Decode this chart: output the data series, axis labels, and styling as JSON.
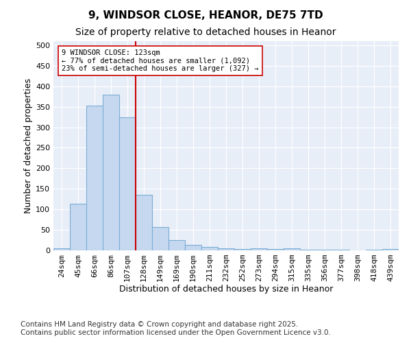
{
  "title": "9, WINDSOR CLOSE, HEANOR, DE75 7TD",
  "subtitle": "Size of property relative to detached houses in Heanor",
  "xlabel": "Distribution of detached houses by size in Heanor",
  "ylabel": "Number of detached properties",
  "categories": [
    "24sqm",
    "45sqm",
    "66sqm",
    "86sqm",
    "107sqm",
    "128sqm",
    "149sqm",
    "169sqm",
    "190sqm",
    "211sqm",
    "232sqm",
    "252sqm",
    "273sqm",
    "294sqm",
    "315sqm",
    "335sqm",
    "356sqm",
    "377sqm",
    "398sqm",
    "418sqm",
    "439sqm"
  ],
  "values": [
    5,
    113,
    352,
    380,
    325,
    135,
    57,
    25,
    13,
    8,
    5,
    4,
    5,
    4,
    5,
    2,
    1,
    1,
    0,
    1,
    3
  ],
  "bar_color": "#c5d8f0",
  "bar_edgecolor": "#7aadd4",
  "vline_x_index": 5,
  "vline_color": "#cc0000",
  "annotation_text": "9 WINDSOR CLOSE: 123sqm\n← 77% of detached houses are smaller (1,092)\n23% of semi-detached houses are larger (327) →",
  "annotation_box_edgecolor": "#cc0000",
  "annotation_box_facecolor": "#ffffff",
  "ylim": [
    0,
    510
  ],
  "yticks": [
    0,
    50,
    100,
    150,
    200,
    250,
    300,
    350,
    400,
    450,
    500
  ],
  "footer": "Contains HM Land Registry data © Crown copyright and database right 2025.\nContains public sector information licensed under the Open Government Licence v3.0.",
  "fig_background_color": "#ffffff",
  "plot_background_color": "#e8eef8",
  "grid_color": "#ffffff",
  "title_fontsize": 11,
  "subtitle_fontsize": 10,
  "xlabel_fontsize": 9,
  "ylabel_fontsize": 9,
  "tick_fontsize": 8,
  "footer_fontsize": 7.5
}
